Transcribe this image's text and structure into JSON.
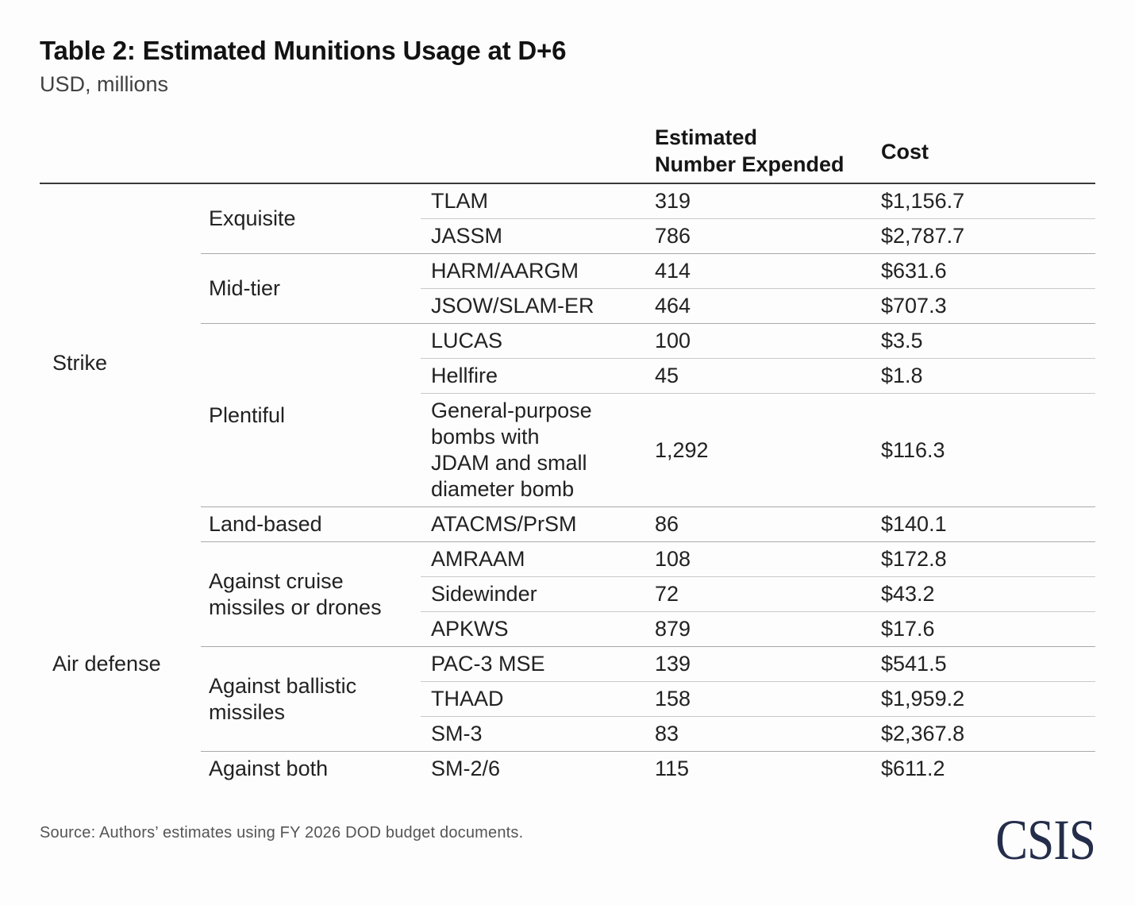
{
  "header": {
    "title": "Table 2: Estimated Munitions Usage at D+6",
    "subtitle": "USD, millions"
  },
  "table": {
    "columns": {
      "expended": "Estimated\nNumber Expended",
      "cost": "Cost"
    },
    "categories": [
      {
        "label": "Strike",
        "tiers": [
          {
            "label": "Exquisite",
            "rows": [
              {
                "munition": "TLAM",
                "expended": "319",
                "cost": "$1,156.7"
              },
              {
                "munition": "JASSM",
                "expended": "786",
                "cost": "$2,787.7"
              }
            ]
          },
          {
            "label": "Mid-tier",
            "rows": [
              {
                "munition": "HARM/AARGM",
                "expended": "414",
                "cost": "$631.6"
              },
              {
                "munition": "JSOW/SLAM-ER",
                "expended": "464",
                "cost": "$707.3"
              }
            ]
          },
          {
            "label": "Plentiful",
            "rows": [
              {
                "munition": "LUCAS",
                "expended": "100",
                "cost": "$3.5"
              },
              {
                "munition": "Hellfire",
                "expended": "45",
                "cost": "$1.8"
              },
              {
                "munition": "General-purpose\nbombs with\nJDAM and small\ndiameter bomb",
                "expended": "1,292",
                "cost": "$116.3"
              }
            ]
          },
          {
            "label": "Land-based",
            "rows": [
              {
                "munition": "ATACMS/PrSM",
                "expended": "86",
                "cost": "$140.1"
              }
            ]
          }
        ]
      },
      {
        "label": "Air defense",
        "tiers": [
          {
            "label": "Against cruise missiles or drones",
            "rows": [
              {
                "munition": "AMRAAM",
                "expended": "108",
                "cost": "$172.8"
              },
              {
                "munition": "Sidewinder",
                "expended": "72",
                "cost": "$43.2"
              },
              {
                "munition": "APKWS",
                "expended": "879",
                "cost": "$17.6"
              }
            ]
          },
          {
            "label": "Against ballistic missiles",
            "rows": [
              {
                "munition": "PAC-3 MSE",
                "expended": "139",
                "cost": "$541.5"
              },
              {
                "munition": "THAAD",
                "expended": "158",
                "cost": "$1,959.2"
              },
              {
                "munition": "SM-3",
                "expended": "83",
                "cost": "$2,367.8"
              }
            ]
          },
          {
            "label": "Against both",
            "rows": [
              {
                "munition": "SM-2/6",
                "expended": "115",
                "cost": "$611.2"
              }
            ]
          }
        ]
      }
    ]
  },
  "footer": {
    "source": "Source: Authors’ estimates using FY 2026 DOD budget documents.",
    "logo_text": "CSIS"
  },
  "colors": {
    "logo_navy": "#242e4a",
    "rule_dark": "#3a3a3a",
    "row_line": "#c9c9c9",
    "group_line": "#a9a9a9"
  }
}
